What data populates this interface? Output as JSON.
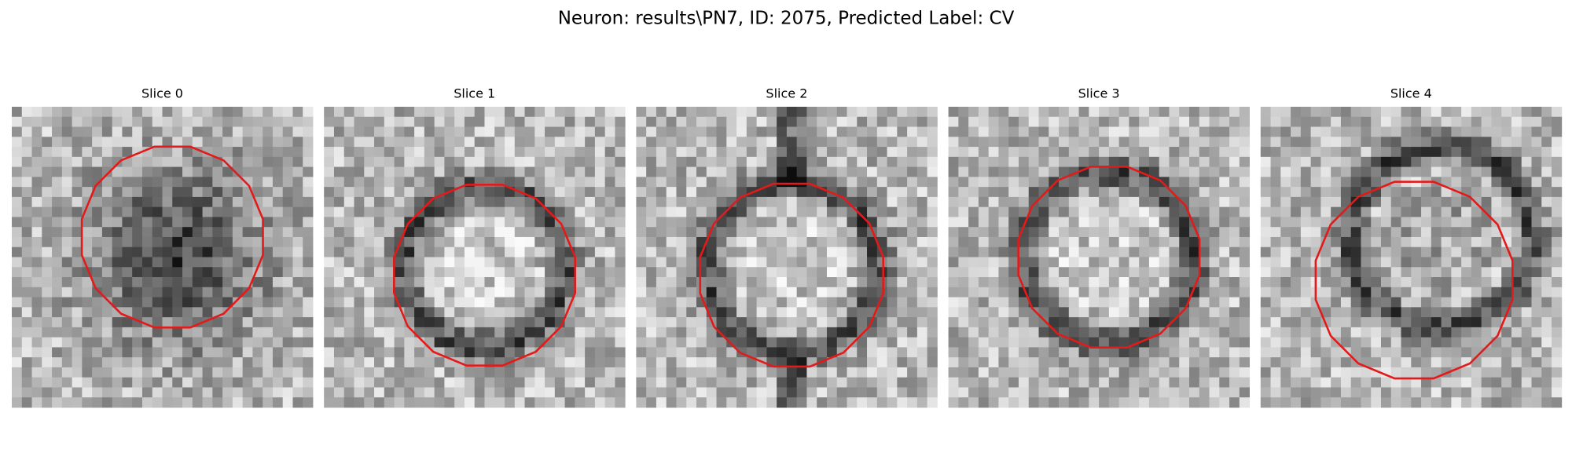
{
  "header": {
    "title": "Neuron: results\\PN7, ID: 2075, Predicted Label: CV"
  },
  "panels": [
    {
      "title": "Slice 0"
    },
    {
      "title": "Slice 1"
    },
    {
      "title": "Slice 2"
    },
    {
      "title": "Slice 3"
    },
    {
      "title": "Slice 4"
    }
  ]
}
